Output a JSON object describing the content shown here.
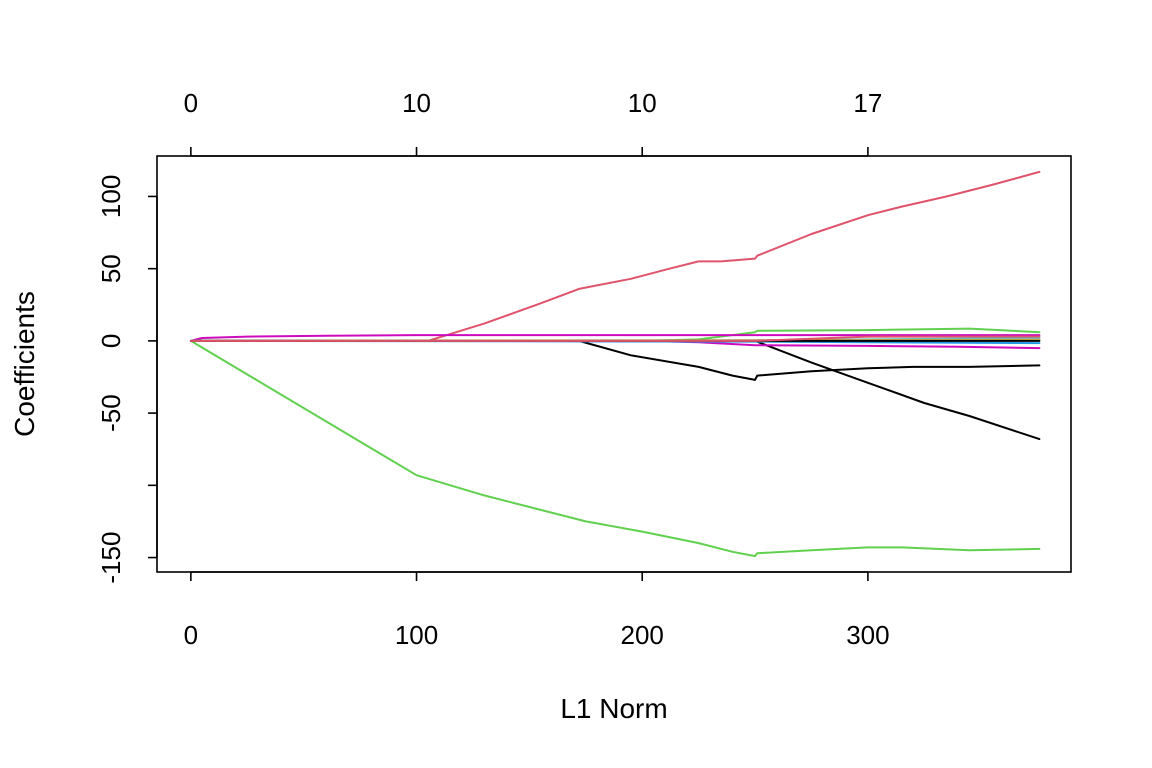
{
  "chart_data": {
    "type": "line",
    "title": "",
    "xlabel": "L1 Norm",
    "ylabel": "Coefficients",
    "xlim": [
      -15,
      390
    ],
    "ylim": [
      -160,
      128
    ],
    "grid": false,
    "legend": "none",
    "x_ticks": [
      {
        "value": 0,
        "label": "0"
      },
      {
        "value": 100,
        "label": "100"
      },
      {
        "value": 200,
        "label": "200"
      },
      {
        "value": 300,
        "label": "300"
      }
    ],
    "y_ticks": [
      {
        "value": -150,
        "label": "-150"
      },
      {
        "value": -100,
        "label": ""
      },
      {
        "value": -50,
        "label": "-50"
      },
      {
        "value": 0,
        "label": "0"
      },
      {
        "value": 50,
        "label": "50"
      },
      {
        "value": 100,
        "label": "100"
      }
    ],
    "top_ticks": [
      {
        "value": 0,
        "label": "0"
      },
      {
        "value": 100,
        "label": "10"
      },
      {
        "value": 200,
        "label": "10"
      },
      {
        "value": 300,
        "label": "17"
      }
    ],
    "series": [
      {
        "color": "#DF536B",
        "points": [
          [
            0,
            0
          ],
          [
            105,
            0
          ],
          [
            130,
            12
          ],
          [
            155,
            26
          ],
          [
            172,
            36
          ],
          [
            195,
            43
          ],
          [
            212,
            50
          ],
          [
            225,
            55
          ],
          [
            235,
            55
          ],
          [
            250,
            57
          ],
          [
            251,
            59
          ],
          [
            275,
            74
          ],
          [
            300,
            87
          ],
          [
            315,
            93
          ],
          [
            335,
            100
          ],
          [
            355,
            108
          ],
          [
            376,
            117
          ]
        ]
      },
      {
        "color": "#61D04F",
        "points": [
          [
            0,
            0
          ],
          [
            100,
            -93
          ],
          [
            130,
            -107
          ],
          [
            150,
            -115
          ],
          [
            175,
            -125
          ],
          [
            200,
            -132
          ],
          [
            225,
            -140
          ],
          [
            240,
            -146
          ],
          [
            250,
            -149
          ],
          [
            251,
            -147
          ],
          [
            275,
            -145
          ],
          [
            300,
            -143
          ],
          [
            315,
            -143
          ],
          [
            345,
            -145
          ],
          [
            376,
            -144
          ]
        ]
      },
      {
        "color": "#61D04F",
        "points": [
          [
            0,
            0
          ],
          [
            200,
            0
          ],
          [
            225,
            1
          ],
          [
            240,
            4
          ],
          [
            250,
            6
          ],
          [
            251,
            7
          ],
          [
            300,
            7.5
          ],
          [
            325,
            8
          ],
          [
            345,
            8.5
          ],
          [
            376,
            6
          ]
        ]
      },
      {
        "color": "#000000",
        "points": [
          [
            0,
            0
          ],
          [
            172,
            0
          ],
          [
            195,
            -10
          ],
          [
            225,
            -18
          ],
          [
            240,
            -24
          ],
          [
            250,
            -27
          ],
          [
            251,
            -24
          ],
          [
            275,
            -21
          ],
          [
            300,
            -19
          ],
          [
            320,
            -18
          ],
          [
            345,
            -18
          ],
          [
            376,
            -17
          ]
        ]
      },
      {
        "color": "#000000",
        "points": [
          [
            0,
            0
          ],
          [
            250,
            0
          ],
          [
            275,
            -15
          ],
          [
            300,
            -29
          ],
          [
            325,
            -43
          ],
          [
            345,
            -52
          ],
          [
            376,
            -68
          ]
        ]
      },
      {
        "color": "#CD0BBC",
        "points": [
          [
            0,
            0
          ],
          [
            5,
            2
          ],
          [
            25,
            3
          ],
          [
            60,
            3.5
          ],
          [
            100,
            4
          ],
          [
            150,
            4
          ],
          [
            200,
            4
          ],
          [
            225,
            4
          ],
          [
            250,
            4
          ],
          [
            300,
            4
          ],
          [
            376,
            4
          ]
        ]
      },
      {
        "color": "#CD0BBC",
        "points": [
          [
            0,
            0
          ],
          [
            200,
            0
          ],
          [
            225,
            -1
          ],
          [
            250,
            -3
          ],
          [
            300,
            -3.5
          ],
          [
            340,
            -4
          ],
          [
            376,
            -5
          ]
        ]
      },
      {
        "color": "#28E2E5",
        "points": [
          [
            0,
            0
          ],
          [
            250,
            0
          ],
          [
            300,
            1
          ],
          [
            376,
            2
          ]
        ]
      },
      {
        "color": "#2297E6",
        "points": [
          [
            0,
            0
          ],
          [
            250,
            -0.5
          ],
          [
            300,
            -1
          ],
          [
            376,
            -1.5
          ]
        ]
      },
      {
        "color": "#9E9E9E",
        "points": [
          [
            0,
            0
          ],
          [
            250,
            0.5
          ],
          [
            300,
            0.8
          ],
          [
            376,
            1.2
          ]
        ]
      },
      {
        "color": "#F5C710",
        "points": [
          [
            0,
            0
          ],
          [
            250,
            0.2
          ],
          [
            376,
            0.5
          ]
        ]
      },
      {
        "color": "#000000",
        "points": [
          [
            0,
            0
          ],
          [
            250,
            0
          ],
          [
            376,
            0
          ]
        ]
      },
      {
        "color": "#DF536B",
        "points": [
          [
            0,
            0
          ],
          [
            250,
            0
          ],
          [
            300,
            3
          ],
          [
            376,
            3
          ]
        ]
      }
    ]
  }
}
